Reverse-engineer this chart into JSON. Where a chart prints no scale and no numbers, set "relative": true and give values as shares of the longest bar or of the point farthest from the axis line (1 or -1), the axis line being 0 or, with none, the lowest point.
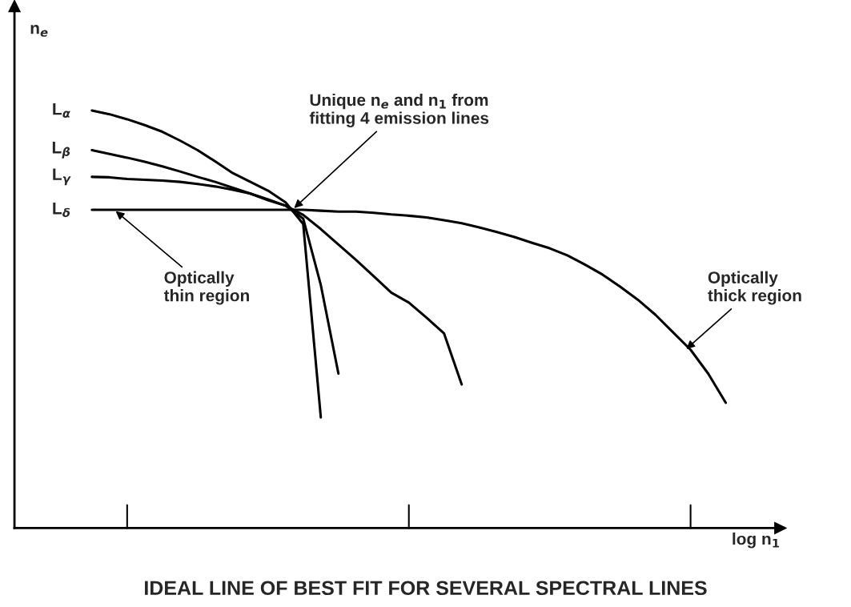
{
  "chart_data": {
    "type": "line",
    "title": "IDEAL LINE OF BEST FIT FOR SEVERAL SPECTRAL LINES",
    "xlabel": "log n$_{1}$",
    "ylabel": "n$_{e}$",
    "relative": true,
    "legend": false,
    "marker": "none",
    "line_style": "solid",
    "categories": [
      null,
      null,
      null,
      null,
      null,
      null,
      null,
      null,
      null,
      null,
      null,
      null,
      null,
      null,
      null,
      null,
      null,
      null,
      null,
      null,
      null,
      null,
      null,
      null,
      null,
      null,
      null,
      null,
      null,
      null,
      null,
      null,
      null,
      null,
      null,
      null,
      null
    ],
    "series": [
      {
        "name": "L$_{α}$",
        "color": "#000000",
        "values": [
          1.0,
          0.991,
          0.979,
          0.965,
          0.949,
          0.928,
          0.905,
          0.878,
          0.85,
          0.829,
          0.808,
          0.78,
          0.728,
          0.265,
          null,
          null,
          null,
          null,
          null,
          null,
          null,
          null,
          null,
          null,
          null,
          null,
          null,
          null,
          null,
          null,
          null,
          null,
          null,
          null,
          null,
          null,
          null
        ]
      },
      {
        "name": "L$_{β}$",
        "color": "#000000",
        "values": [
          0.905,
          0.896,
          0.887,
          0.877,
          0.866,
          0.854,
          0.841,
          0.829,
          0.815,
          0.801,
          0.787,
          0.772,
          0.741,
          0.582,
          0.37,
          null,
          null,
          null,
          null,
          null,
          null,
          null,
          null,
          null,
          null,
          null,
          null,
          null,
          null,
          null,
          null,
          null,
          null,
          null,
          null,
          null,
          null
        ]
      },
      {
        "name": "L$_{γ}$",
        "color": "#000000",
        "values": [
          0.841,
          0.84,
          0.836,
          0.834,
          0.832,
          0.829,
          0.824,
          0.818,
          0.81,
          0.801,
          0.785,
          0.772,
          0.75,
          0.716,
          0.679,
          0.642,
          0.603,
          0.564,
          0.54,
          0.504,
          0.466,
          0.344,
          null,
          null,
          null,
          null,
          null,
          null,
          null,
          null,
          null,
          null,
          null,
          null,
          null,
          null,
          null
        ]
      },
      {
        "name": "L$_{δ}$",
        "color": "#000000",
        "values": [
          0.762,
          0.762,
          0.762,
          0.762,
          0.762,
          0.762,
          0.762,
          0.762,
          0.762,
          0.762,
          0.762,
          0.762,
          0.762,
          0.76,
          0.758,
          0.758,
          0.755,
          0.751,
          0.748,
          0.744,
          0.737,
          0.73,
          0.72,
          0.709,
          0.697,
          0.683,
          0.67,
          0.653,
          0.631,
          0.607,
          0.578,
          0.547,
          0.511,
          0.469,
          0.427,
          0.37,
          0.3
        ]
      }
    ],
    "annotations": [
      "Unique n$_{e}$ and n$_{1}$ from\nfitting 4 emission lines",
      "Optically\nthin region",
      "Optically\nthick region"
    ]
  }
}
